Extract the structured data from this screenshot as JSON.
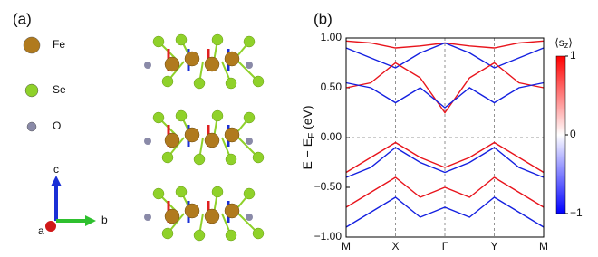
{
  "panel_a": {
    "label": "(a)",
    "atoms": [
      {
        "name": "Fe",
        "color": "#b07a1e"
      },
      {
        "name": "Se",
        "color": "#8fd12a"
      },
      {
        "name": "O",
        "color": "#8a8aa8"
      }
    ],
    "axes": [
      {
        "name": "c",
        "color": "#1a2fd6"
      },
      {
        "name": "b",
        "color": "#2fc02f"
      },
      {
        "name": "a",
        "color": "#d01818"
      }
    ]
  },
  "chart_data": {
    "type": "line",
    "label": "(b)",
    "ylabel": [
      "E − E",
      "F",
      " (eV)"
    ],
    "x": [
      0,
      0.5,
      1,
      1.5,
      2,
      2.5,
      3,
      3.5,
      4
    ],
    "xlim": [
      0,
      4
    ],
    "xticks": [
      {
        "value": 0,
        "label": "M"
      },
      {
        "value": 1,
        "label": "X"
      },
      {
        "value": 2,
        "label": "Γ"
      },
      {
        "value": 3,
        "label": "Y"
      },
      {
        "value": 4,
        "label": "M"
      }
    ],
    "ylim": [
      -1,
      1
    ],
    "yticks": [
      {
        "value": -1,
        "label": "−1.00"
      },
      {
        "value": -0.5,
        "label": "−0.50"
      },
      {
        "value": 0,
        "label": "0.00"
      },
      {
        "value": 0.5,
        "label": "0.50"
      },
      {
        "value": 1,
        "label": "1.00"
      }
    ],
    "grid": true,
    "series": [
      {
        "color": "#e8141c",
        "values": [
          0.97,
          0.95,
          0.9,
          0.92,
          0.95,
          0.92,
          0.9,
          0.95,
          0.97
        ]
      },
      {
        "color": "#1420e0",
        "values": [
          0.9,
          0.8,
          0.7,
          0.85,
          0.95,
          0.85,
          0.7,
          0.8,
          0.9
        ]
      },
      {
        "color": "#e8141c",
        "values": [
          0.5,
          0.55,
          0.75,
          0.6,
          0.25,
          0.6,
          0.75,
          0.55,
          0.5
        ]
      },
      {
        "color": "#1420e0",
        "values": [
          0.55,
          0.5,
          0.35,
          0.5,
          0.3,
          0.5,
          0.35,
          0.5,
          0.55
        ]
      },
      {
        "color": "#e8141c",
        "values": [
          -0.35,
          -0.2,
          -0.05,
          -0.2,
          -0.3,
          -0.2,
          -0.05,
          -0.2,
          -0.35
        ]
      },
      {
        "color": "#1420e0",
        "values": [
          -0.4,
          -0.3,
          -0.1,
          -0.25,
          -0.35,
          -0.25,
          -0.1,
          -0.3,
          -0.4
        ]
      },
      {
        "color": "#e8141c",
        "values": [
          -0.7,
          -0.55,
          -0.4,
          -0.6,
          -0.5,
          -0.6,
          -0.4,
          -0.55,
          -0.7
        ]
      },
      {
        "color": "#1420e0",
        "values": [
          -0.9,
          -0.75,
          -0.6,
          -0.8,
          -0.7,
          -0.8,
          -0.6,
          -0.75,
          -0.9
        ]
      }
    ],
    "colorbar": {
      "label": [
        "⟨s",
        "z",
        "⟩"
      ],
      "clim": [
        -1,
        1
      ],
      "colors": [
        "#0000ff",
        "#ffffff",
        "#ff0000"
      ],
      "ticks": [
        {
          "value": 1,
          "label": "1"
        },
        0,
        {
          "value": -1,
          "label": "−1"
        }
      ]
    }
  }
}
